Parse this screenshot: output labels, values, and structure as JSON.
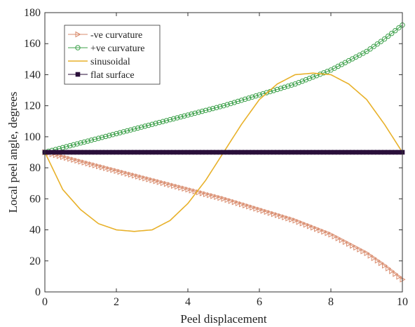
{
  "chart_data": {
    "type": "line",
    "title": "",
    "xlabel": "Peel displacement",
    "ylabel": "Local peel angle, degrees",
    "xlim": [
      0,
      10
    ],
    "ylim": [
      0,
      180
    ],
    "xticks": [
      0,
      2,
      4,
      6,
      8,
      10
    ],
    "yticks": [
      0,
      20,
      40,
      60,
      80,
      100,
      120,
      140,
      160,
      180
    ],
    "grid": false,
    "legend_position": "top-left",
    "series": [
      {
        "name": "-ve  curvature",
        "color": "#d98c6e",
        "marker": "triangle-right",
        "x": [
          0,
          1,
          2,
          3,
          4,
          5,
          6,
          7,
          8,
          9,
          9.5,
          10
        ],
        "y": [
          90,
          84,
          78,
          72,
          66,
          60,
          53,
          46,
          37,
          25,
          17,
          8
        ]
      },
      {
        "name": "+ve  curvature",
        "color": "#3ca04a",
        "marker": "circle",
        "x": [
          0,
          1,
          2,
          3,
          4,
          5,
          6,
          7,
          8,
          9,
          9.5,
          10
        ],
        "y": [
          90,
          96,
          102,
          108,
          114,
          120,
          127,
          134,
          143,
          155,
          163,
          172
        ]
      },
      {
        "name": "sinusoidal",
        "color": "#e8b12a",
        "marker": "none",
        "x": [
          0,
          0.5,
          1,
          1.5,
          2,
          2.5,
          3,
          3.5,
          4,
          4.5,
          5,
          5.5,
          6,
          6.5,
          7,
          7.5,
          8,
          8.5,
          9,
          9.5,
          10
        ],
        "y": [
          90,
          66,
          53,
          44,
          40,
          39,
          40,
          46,
          57,
          72,
          90,
          108,
          124,
          134,
          140,
          141,
          140,
          134,
          124,
          108,
          90
        ]
      },
      {
        "name": "flat surface",
        "color": "#2a0f3a",
        "marker": "square",
        "x": [
          0,
          10
        ],
        "y": [
          90,
          90
        ]
      }
    ]
  }
}
